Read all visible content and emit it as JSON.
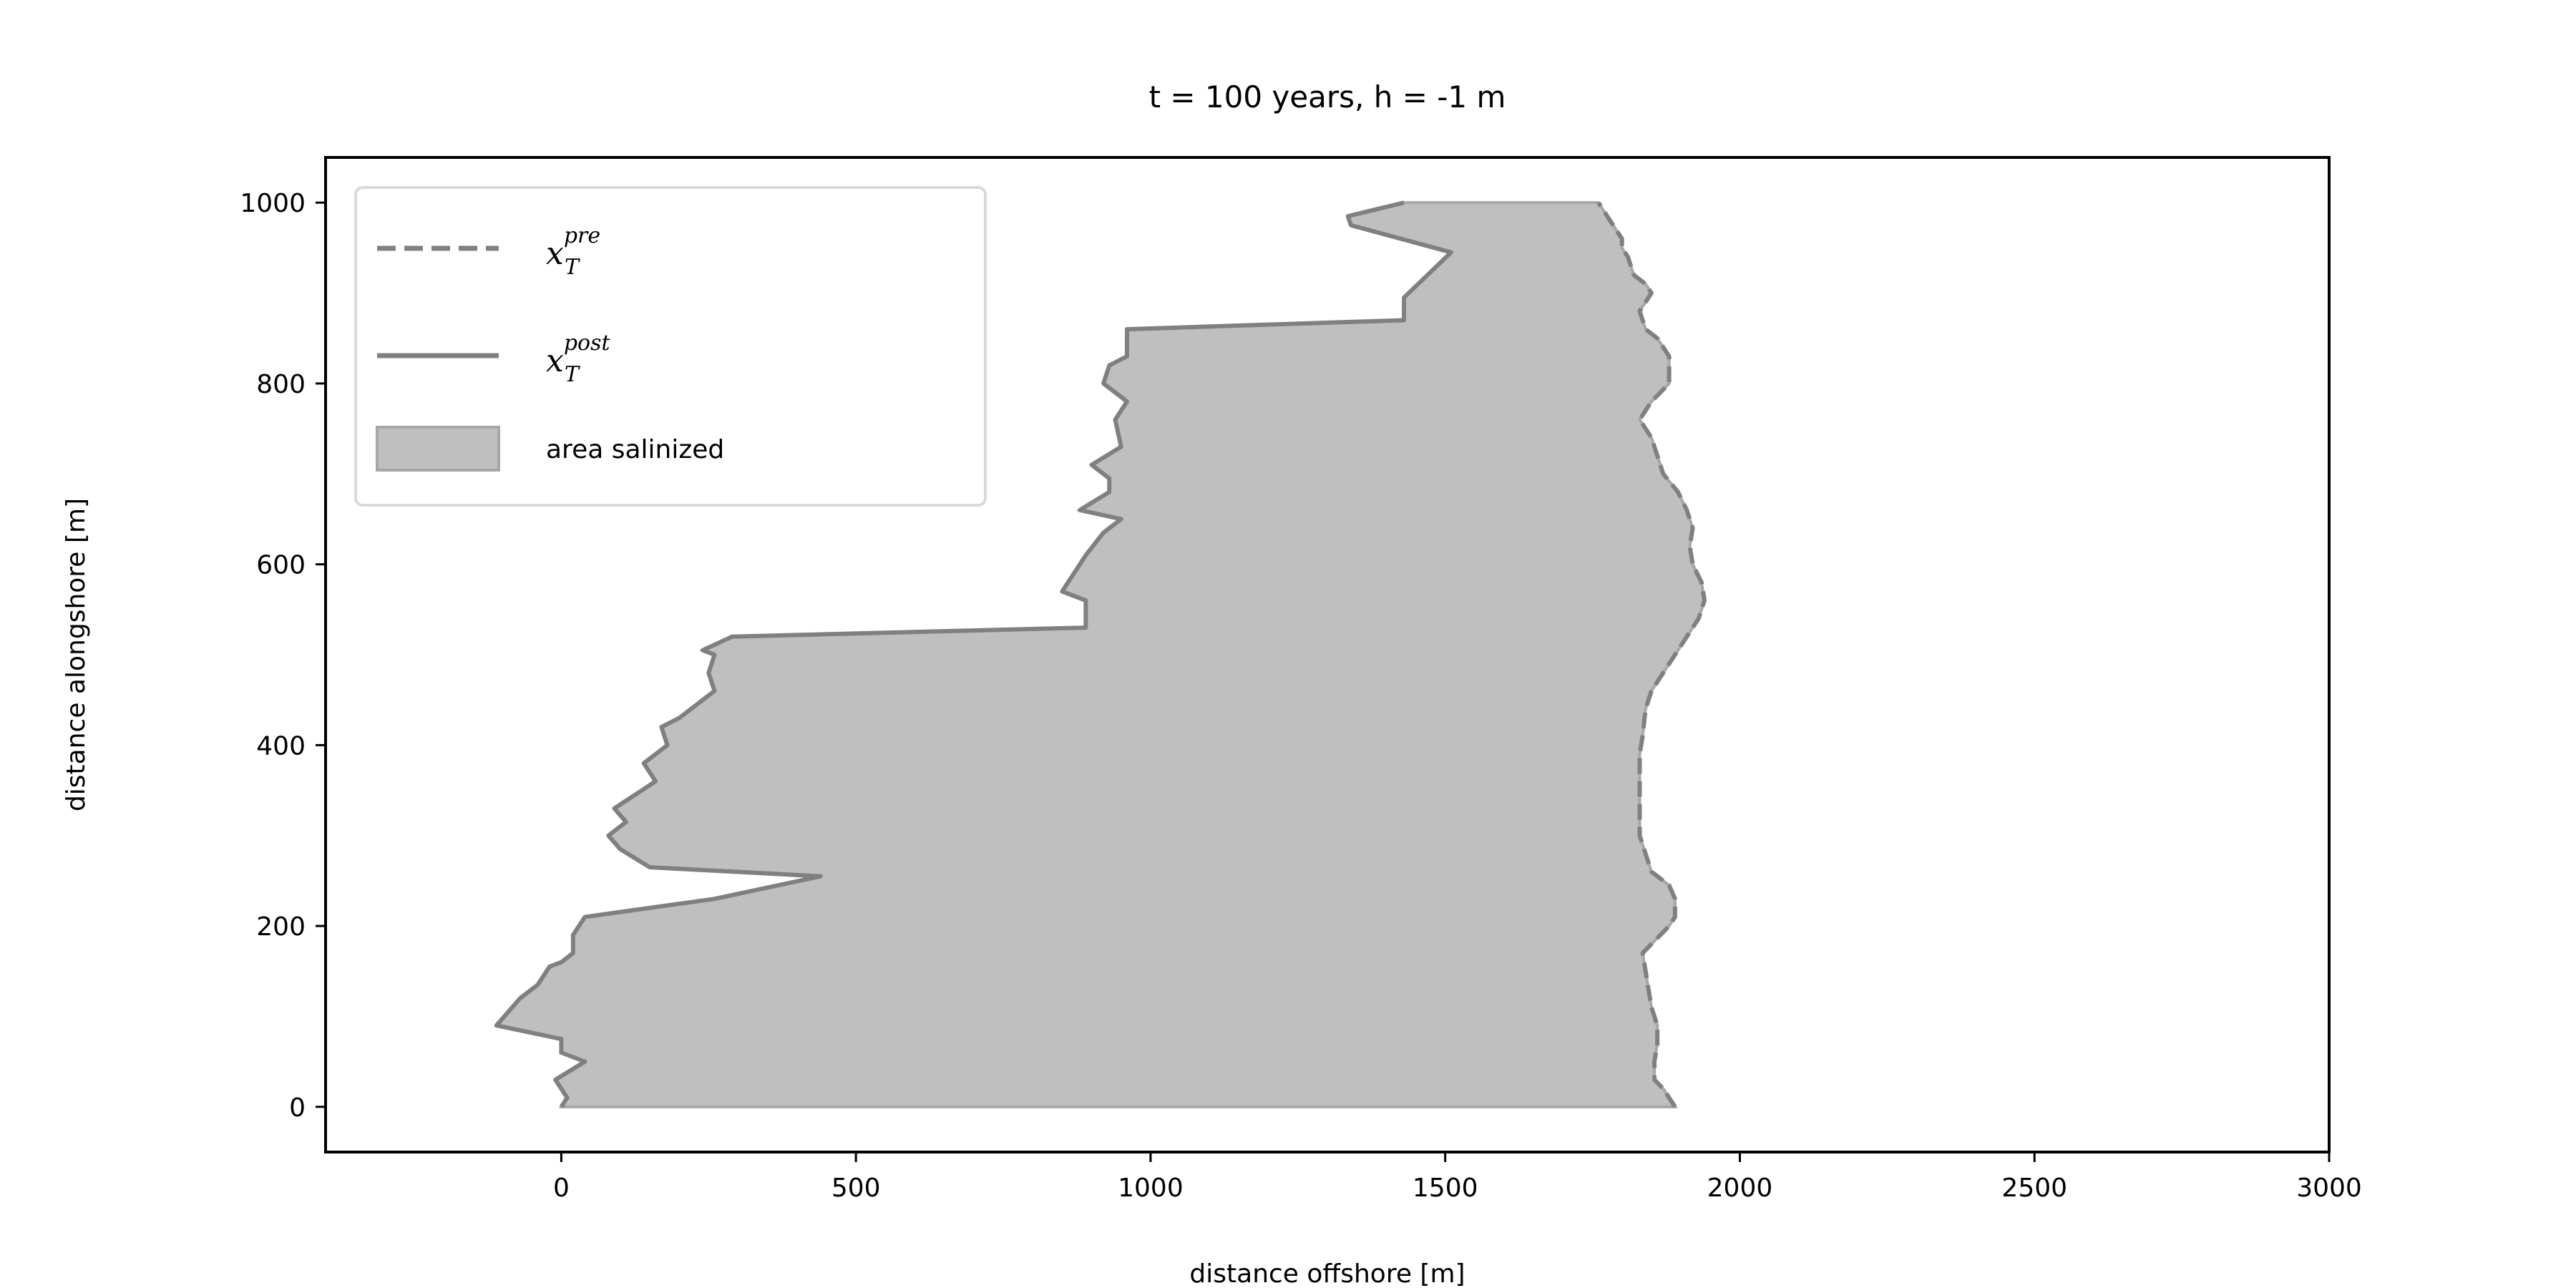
{
  "chart_data": {
    "type": "area",
    "title": "t = 100 years, h = -1 m",
    "xlabel": "distance offshore [m]",
    "ylabel": "distance alongshore [m]",
    "xlim": [
      -400,
      3000
    ],
    "ylim": [
      -50,
      1050
    ],
    "xticks": [
      0,
      500,
      1000,
      1500,
      2000,
      2500,
      3000
    ],
    "yticks": [
      0,
      200,
      400,
      600,
      800,
      1000
    ],
    "grid": false,
    "legend_position": "top-left",
    "colors": {
      "line": "#808080",
      "fill": "#bfbfbf",
      "fill_edge": "#a6a6a6",
      "axes": "#000000",
      "legend_border": "#d9d9d9"
    },
    "legend": [
      {
        "symbol": "x",
        "subscript": "T",
        "superscript": "pre",
        "style": "dashed"
      },
      {
        "symbol": "x",
        "subscript": "T",
        "superscript": "post",
        "style": "solid"
      },
      {
        "label": "area salinized",
        "style": "patch"
      }
    ],
    "series": [
      {
        "key": "pre",
        "style": "dashed",
        "x": [
          1890,
          1880,
          1870,
          1855,
          1855,
          1860,
          1860,
          1850,
          1845,
          1840,
          1835,
          1850,
          1880,
          1890,
          1890,
          1880,
          1850,
          1840,
          1830,
          1830,
          1830,
          1830,
          1835,
          1840,
          1850,
          1870,
          1900,
          1930,
          1940,
          1935,
          1920,
          1915,
          1920,
          1910,
          1895,
          1870,
          1860,
          1850,
          1830,
          1850,
          1880,
          1880,
          1860,
          1840,
          1830,
          1850,
          1840,
          1820,
          1810,
          1800,
          1800,
          1790,
          1780,
          1770,
          1760
        ],
        "y": [
          0,
          10,
          20,
          30,
          50,
          70,
          90,
          110,
          130,
          150,
          170,
          180,
          200,
          210,
          230,
          245,
          260,
          280,
          300,
          330,
          360,
          390,
          410,
          440,
          460,
          480,
          510,
          540,
          560,
          580,
          600,
          620,
          640,
          660,
          680,
          700,
          720,
          740,
          760,
          780,
          800,
          830,
          850,
          860,
          880,
          900,
          910,
          920,
          940,
          950,
          960,
          970,
          980,
          990,
          1000
        ]
      },
      {
        "key": "post",
        "style": "solid",
        "x": [
          0,
          10,
          -10,
          40,
          0,
          0,
          -110,
          -70,
          -40,
          -20,
          0,
          20,
          20,
          40,
          260,
          440,
          150,
          100,
          80,
          110,
          90,
          160,
          140,
          180,
          170,
          200,
          220,
          260,
          250,
          260,
          240,
          290,
          890,
          890,
          850,
          870,
          890,
          920,
          950,
          880,
          930,
          930,
          900,
          950,
          940,
          960,
          920,
          930,
          960,
          960,
          1430,
          1430,
          1470,
          1510,
          1340,
          1335,
          1430
        ],
        "y": [
          0,
          10,
          30,
          50,
          60,
          75,
          90,
          120,
          135,
          155,
          160,
          170,
          190,
          210,
          230,
          255,
          265,
          285,
          300,
          315,
          330,
          360,
          380,
          400,
          420,
          430,
          440,
          460,
          480,
          500,
          505,
          520,
          530,
          560,
          570,
          590,
          610,
          635,
          650,
          660,
          680,
          695,
          710,
          730,
          760,
          780,
          800,
          820,
          830,
          860,
          870,
          895,
          920,
          945,
          975,
          985,
          1000
        ]
      }
    ]
  }
}
